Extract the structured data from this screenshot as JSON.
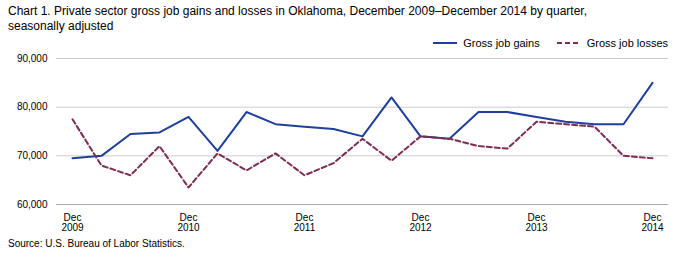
{
  "chart_data": {
    "type": "line",
    "title": "Chart 1. Private sector gross job gains and losses in Oklahoma, December 2009–December 2014 by quarter,\nseasonally adjusted",
    "source": "Source: U.S. Bureau of Labor Statistics.",
    "categories": [
      "Dec\n2009",
      null,
      null,
      null,
      "Dec\n2010",
      null,
      null,
      null,
      "Dec\n2011",
      null,
      null,
      null,
      "Dec\n2012",
      null,
      null,
      null,
      "Dec\n2013",
      null,
      null,
      null,
      "Dec\n2014"
    ],
    "series": [
      {
        "name": "Gross job gains",
        "color": "#1f3f99",
        "line_style": "solid",
        "values": [
          69500,
          70000,
          74500,
          74800,
          78000,
          71000,
          79000,
          76500,
          76000,
          75500,
          74000,
          82000,
          74000,
          73500,
          79000,
          79000,
          78000,
          77000,
          76500,
          76500,
          85000
        ]
      },
      {
        "name": "Gross job losses",
        "color": "#7b2d52",
        "line_style": "dashed",
        "values": [
          77500,
          68000,
          66000,
          72000,
          63500,
          70500,
          67000,
          70500,
          66000,
          68500,
          73500,
          69000,
          74000,
          73500,
          72000,
          71500,
          77000,
          76500,
          76000,
          70000,
          69500
        ]
      }
    ],
    "ylim": [
      60000,
      90000
    ],
    "yticks": [
      {
        "value": 60000,
        "label": "60,000"
      },
      {
        "value": 70000,
        "label": "70,000"
      },
      {
        "value": 80000,
        "label": "80,000"
      },
      {
        "value": 90000,
        "label": "90,000"
      }
    ],
    "grid": true,
    "legend": "upper right"
  }
}
